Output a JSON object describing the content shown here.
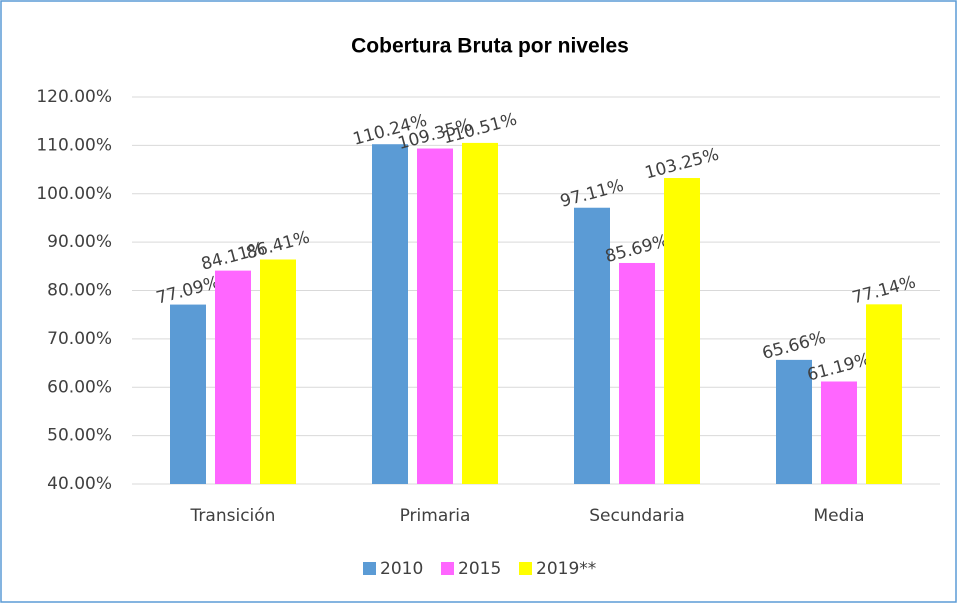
{
  "chart_data": {
    "type": "bar",
    "title": "Cobertura Bruta por niveles",
    "categories": [
      "Transición",
      "Primaria",
      "Secundaria",
      "Media"
    ],
    "series": [
      {
        "name": "2010",
        "color": "#5b9bd5",
        "values": [
          77.09,
          110.24,
          97.11,
          65.66
        ],
        "value_labels": [
          "77.09%",
          "110.24%",
          "97.11%",
          "65.66%"
        ]
      },
      {
        "name": "2015",
        "color": "#ff66ff",
        "values": [
          84.11,
          109.35,
          85.69,
          61.19
        ],
        "value_labels": [
          "84.11%",
          "109.35%",
          "85.69%",
          "61.19%"
        ]
      },
      {
        "name": "2019**",
        "color": "#ffff00",
        "values": [
          86.41,
          110.51,
          103.25,
          77.14
        ],
        "value_labels": [
          "86.41%",
          "110.51%",
          "103.25%",
          "77.14%"
        ]
      }
    ],
    "ylim": [
      40,
      120
    ],
    "yticks": [
      {
        "value": 40,
        "label": "40.00%"
      },
      {
        "value": 50,
        "label": "50.00%"
      },
      {
        "value": 60,
        "label": "60.00%"
      },
      {
        "value": 70,
        "label": "70.00%"
      },
      {
        "value": 80,
        "label": "80.00%"
      },
      {
        "value": 90,
        "label": "90.00%"
      },
      {
        "value": 100,
        "label": "100.00%"
      },
      {
        "value": 110,
        "label": "110.00%"
      },
      {
        "value": 120,
        "label": "120.00%"
      }
    ],
    "grid": true,
    "legend": "bottom"
  }
}
